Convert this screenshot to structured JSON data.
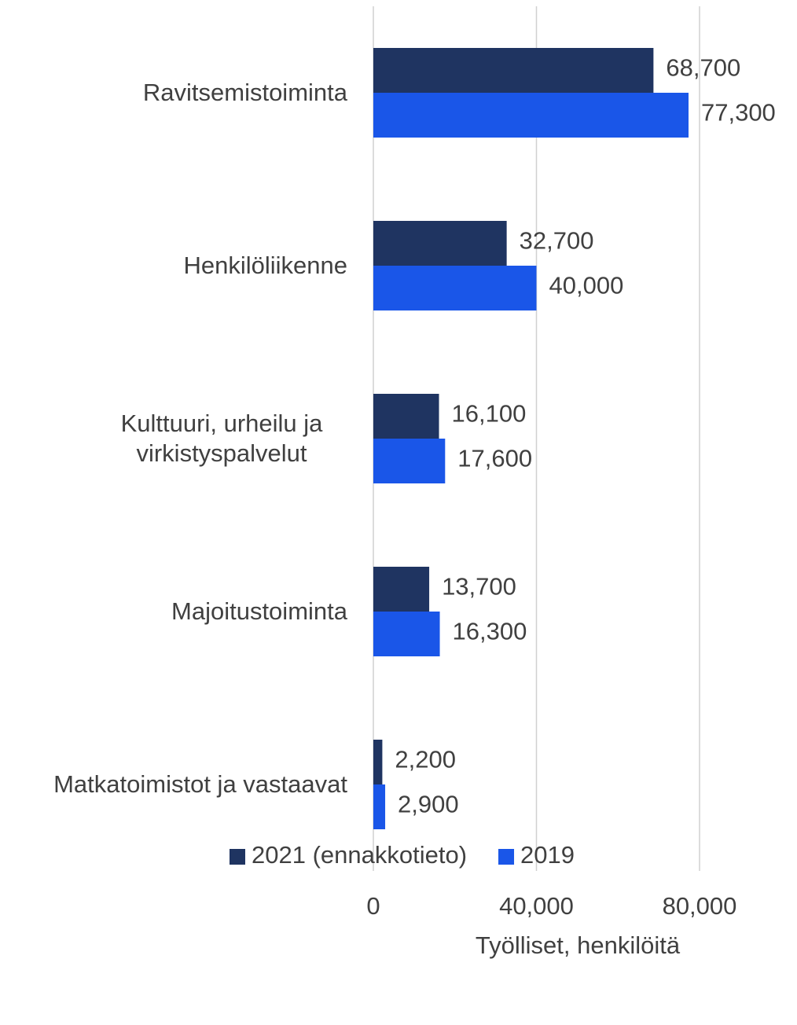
{
  "chart_data": {
    "type": "bar",
    "orientation": "horizontal",
    "categories": [
      "Ravitsemistoiminta",
      "Henkilöliikenne",
      "Kulttuuri, urheilu ja virkistyspalvelut",
      "Majoitustoiminta",
      "Matkatoimistot ja vastaavat"
    ],
    "series": [
      {
        "name": "2021 (ennakkotieto)",
        "color": "#1f3461",
        "values": [
          68700,
          32700,
          16100,
          13700,
          2200
        ],
        "value_labels": [
          "68,700",
          "32,700",
          "16,100",
          "13,700",
          "2,200"
        ]
      },
      {
        "name": "2019",
        "color": "#1a56e8",
        "values": [
          77300,
          40000,
          17600,
          16300,
          2900
        ],
        "value_labels": [
          "77,300",
          "40,000",
          "17,600",
          "16,300",
          "2,900"
        ]
      }
    ],
    "xlim": [
      0,
      80000
    ],
    "xticks": [
      0,
      {
        "value": 40000,
        "label": "40,000"
      },
      {
        "value": 80000,
        "label": "80,000"
      }
    ],
    "xlabel": "Työlliset, henkilöitä",
    "grid": true,
    "legend": "bottom"
  }
}
